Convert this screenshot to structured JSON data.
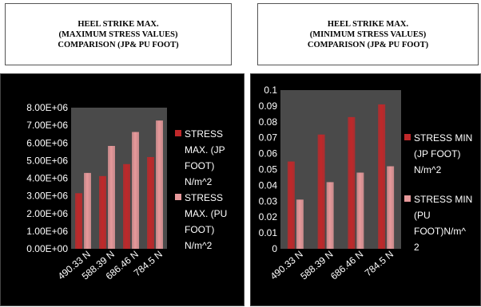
{
  "charts": [
    {
      "title": "HEEL STRIKE MAX.\n(MAXIMUM STRESS VALUES)\nCOMPARISON (JP& PU FOOT)"
    },
    {
      "title": "HEEL STRIKE MAX.\n(MINIMUM STRESS VALUES)\nCOMPARISON (JP& PU FOOT)"
    }
  ],
  "colors": {
    "series1": "#c0282a",
    "series2": "#e7999b",
    "background": "#000000"
  },
  "chart_data": [
    {
      "type": "bar",
      "categories": [
        "490.33 N",
        "588.39 N",
        "686.46 N",
        "784.5 N"
      ],
      "series": [
        {
          "name": "STRESS MAX. (JP FOOT) N/m^2",
          "values": [
            3150000,
            4120000,
            4800000,
            5200000
          ]
        },
        {
          "name": "STRESS MAX. (PU FOOT) N/m^2",
          "values": [
            4300000,
            5830000,
            6620000,
            7270000
          ]
        }
      ],
      "legend_lines": [
        [
          "STRESS",
          "MAX. (JP",
          "FOOT)",
          "N/m^2"
        ],
        [
          "STRESS",
          "MAX. (PU",
          "FOOT)",
          "N/m^2"
        ]
      ],
      "yticks": [
        "0.00E+00",
        "1.00E+06",
        "2.00E+06",
        "3.00E+06",
        "4.00E+06",
        "5.00E+06",
        "6.00E+06",
        "7.00E+06",
        "8.00E+06"
      ],
      "ylim": [
        0,
        8000000
      ],
      "grid": false,
      "legend_position": "right"
    },
    {
      "type": "bar",
      "categories": [
        "490.33 N",
        "588.39 N",
        "686.46 N",
        "784.5 N"
      ],
      "series": [
        {
          "name": "STRESS MIN (JP FOOT) N/m^2",
          "values": [
            0.055,
            0.072,
            0.083,
            0.091
          ]
        },
        {
          "name": "STRESS MIN (PU FOOT)N/m^2",
          "values": [
            0.031,
            0.042,
            0.048,
            0.052
          ]
        }
      ],
      "legend_lines": [
        [
          "STRESS MIN",
          "(JP FOOT)",
          "N/m^2"
        ],
        [
          "STRESS MIN",
          "(PU",
          "FOOT)N/m^",
          "2"
        ]
      ],
      "yticks": [
        "0",
        "0.01",
        "0.02",
        "0.03",
        "0.04",
        "0.05",
        "0.06",
        "0.07",
        "0.08",
        "0.09",
        "0.1"
      ],
      "ylim": [
        0,
        0.1
      ],
      "grid": false,
      "legend_position": "right"
    }
  ]
}
